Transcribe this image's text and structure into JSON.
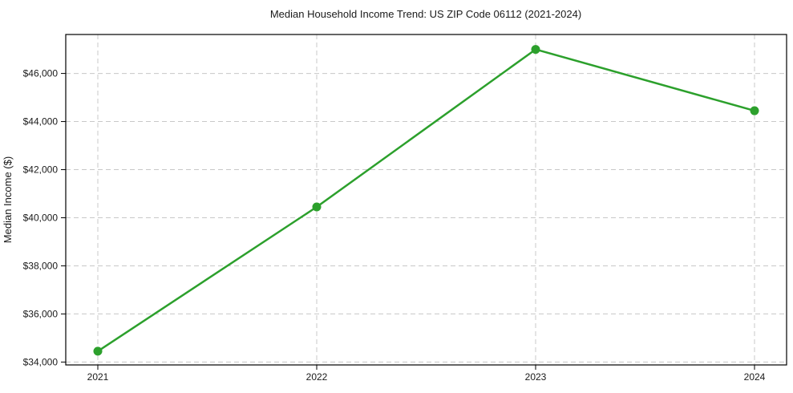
{
  "chart_data": {
    "type": "line",
    "title": "Median Household Income Trend: US ZIP Code 06112 (2021-2024)",
    "ylabel": "Median Income ($)",
    "xlabel": "",
    "categories": [
      "2021",
      "2022",
      "2023",
      "2024"
    ],
    "values": [
      34450,
      40450,
      47000,
      44450
    ],
    "ytick_values": [
      34000,
      36000,
      38000,
      40000,
      42000,
      44000,
      46000
    ],
    "ytick_labels": [
      "$34,000",
      "$36,000",
      "$38,000",
      "$40,000",
      "$42,000",
      "$44,000",
      "$46,000"
    ],
    "ylim": [
      33880,
      47620
    ],
    "grid": true,
    "grid_style": "dashed",
    "legend_position": "none",
    "line_color": "#2ca02c",
    "marker": "circle",
    "marker_color": "#2ca02c",
    "grid_color": "#c8c8c8",
    "axis_color": "#000000",
    "background_color": "#ffffff"
  }
}
